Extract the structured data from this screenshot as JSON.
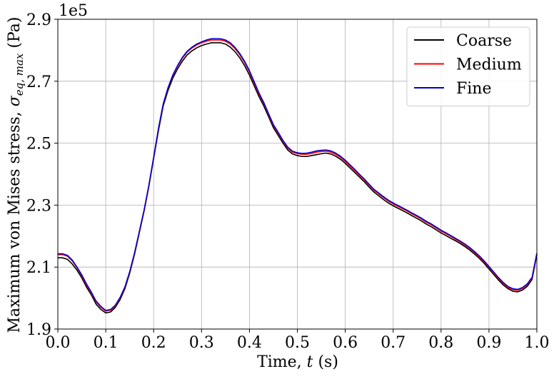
{
  "chart_data": {
    "type": "line",
    "title": "",
    "xlabel_prefix": "Time, ",
    "xlabel_var": "t",
    "xlabel_suffix": " (s)",
    "ylabel_prefix": "Maximum von Mises stress, ",
    "ylabel_sigma": "σ",
    "ylabel_sub": "eq, max",
    "ylabel_suffix": " (Pa)",
    "y_offset_label": "1e5",
    "xlim": [
      0.0,
      1.0
    ],
    "ylim": [
      1.9,
      2.9
    ],
    "y_scale_factor": 100000,
    "xticks": [
      0.0,
      0.1,
      0.2,
      0.3,
      0.4,
      0.5,
      0.6,
      0.7,
      0.8,
      0.9,
      1.0
    ],
    "xtick_labels": [
      "0.0",
      "0.1",
      "0.2",
      "0.3",
      "0.4",
      "0.5",
      "0.6",
      "0.7",
      "0.8",
      "0.9",
      "1.0"
    ],
    "yticks": [
      1.9,
      2.1,
      2.3,
      2.5,
      2.7,
      2.9
    ],
    "ytick_labels": [
      "1.9",
      "2.1",
      "2.3",
      "2.5",
      "2.7",
      "2.9"
    ],
    "grid": true,
    "legend_position": "top-right",
    "x": [
      0.0,
      0.01,
      0.02,
      0.03,
      0.04,
      0.05,
      0.06,
      0.07,
      0.08,
      0.09,
      0.1,
      0.11,
      0.12,
      0.13,
      0.14,
      0.15,
      0.16,
      0.17,
      0.18,
      0.19,
      0.2,
      0.21,
      0.22,
      0.23,
      0.24,
      0.25,
      0.26,
      0.27,
      0.28,
      0.29,
      0.3,
      0.31,
      0.32,
      0.33,
      0.34,
      0.35,
      0.36,
      0.37,
      0.38,
      0.39,
      0.4,
      0.41,
      0.42,
      0.43,
      0.44,
      0.45,
      0.46,
      0.47,
      0.48,
      0.49,
      0.5,
      0.51,
      0.52,
      0.53,
      0.54,
      0.55,
      0.56,
      0.57,
      0.58,
      0.59,
      0.6,
      0.61,
      0.62,
      0.63,
      0.64,
      0.65,
      0.66,
      0.67,
      0.68,
      0.69,
      0.7,
      0.71,
      0.72,
      0.73,
      0.74,
      0.75,
      0.76,
      0.77,
      0.78,
      0.79,
      0.8,
      0.81,
      0.82,
      0.83,
      0.84,
      0.85,
      0.86,
      0.87,
      0.88,
      0.89,
      0.9,
      0.91,
      0.92,
      0.93,
      0.94,
      0.95,
      0.96,
      0.97,
      0.98,
      0.99,
      1.0
    ],
    "series": [
      {
        "name": "Coarse",
        "color": "#000000",
        "values": [
          2.13,
          2.13,
          2.125,
          2.11,
          2.09,
          2.065,
          2.035,
          2.01,
          1.98,
          1.963,
          1.952,
          1.955,
          1.97,
          1.995,
          2.03,
          2.08,
          2.14,
          2.21,
          2.28,
          2.36,
          2.45,
          2.54,
          2.62,
          2.67,
          2.71,
          2.74,
          2.765,
          2.785,
          2.798,
          2.808,
          2.815,
          2.82,
          2.824,
          2.824,
          2.824,
          2.82,
          2.81,
          2.795,
          2.775,
          2.75,
          2.72,
          2.685,
          2.65,
          2.62,
          2.585,
          2.55,
          2.525,
          2.5,
          2.478,
          2.465,
          2.46,
          2.457,
          2.457,
          2.46,
          2.463,
          2.466,
          2.468,
          2.465,
          2.458,
          2.448,
          2.435,
          2.42,
          2.405,
          2.39,
          2.375,
          2.358,
          2.342,
          2.33,
          2.318,
          2.307,
          2.298,
          2.29,
          2.282,
          2.274,
          2.265,
          2.257,
          2.248,
          2.238,
          2.23,
          2.22,
          2.21,
          2.202,
          2.193,
          2.185,
          2.176,
          2.166,
          2.155,
          2.142,
          2.128,
          2.112,
          2.094,
          2.076,
          2.058,
          2.042,
          2.03,
          2.022,
          2.02,
          2.026,
          2.038,
          2.06,
          2.14
        ]
      },
      {
        "name": "Medium",
        "color": "#ff0000",
        "values": [
          2.14,
          2.14,
          2.135,
          2.12,
          2.098,
          2.072,
          2.042,
          2.016,
          1.987,
          1.97,
          1.958,
          1.961,
          1.975,
          2.0,
          2.034,
          2.083,
          2.143,
          2.212,
          2.282,
          2.362,
          2.452,
          2.545,
          2.625,
          2.677,
          2.718,
          2.749,
          2.774,
          2.794,
          2.807,
          2.817,
          2.824,
          2.829,
          2.833,
          2.833,
          2.833,
          2.829,
          2.82,
          2.805,
          2.785,
          2.76,
          2.73,
          2.694,
          2.658,
          2.628,
          2.592,
          2.557,
          2.532,
          2.506,
          2.484,
          2.471,
          2.466,
          2.464,
          2.464,
          2.467,
          2.471,
          2.473,
          2.474,
          2.471,
          2.464,
          2.454,
          2.441,
          2.426,
          2.411,
          2.396,
          2.381,
          2.364,
          2.348,
          2.336,
          2.324,
          2.313,
          2.304,
          2.296,
          2.288,
          2.28,
          2.271,
          2.263,
          2.254,
          2.244,
          2.236,
          2.226,
          2.216,
          2.208,
          2.199,
          2.19,
          2.181,
          2.171,
          2.16,
          2.147,
          2.133,
          2.117,
          2.099,
          2.081,
          2.063,
          2.047,
          2.034,
          2.027,
          2.025,
          2.031,
          2.043,
          2.064,
          2.143
        ]
      },
      {
        "name": "Fine",
        "color": "#0000cc",
        "values": [
          2.143,
          2.143,
          2.138,
          2.123,
          2.1,
          2.075,
          2.045,
          2.019,
          1.99,
          1.973,
          1.96,
          1.963,
          1.977,
          2.002,
          2.036,
          2.085,
          2.145,
          2.214,
          2.284,
          2.364,
          2.454,
          2.547,
          2.627,
          2.679,
          2.72,
          2.751,
          2.777,
          2.797,
          2.81,
          2.82,
          2.827,
          2.833,
          2.837,
          2.837,
          2.837,
          2.833,
          2.824,
          2.809,
          2.789,
          2.764,
          2.734,
          2.698,
          2.662,
          2.631,
          2.595,
          2.56,
          2.535,
          2.509,
          2.487,
          2.474,
          2.469,
          2.467,
          2.468,
          2.471,
          2.475,
          2.477,
          2.478,
          2.475,
          2.468,
          2.458,
          2.445,
          2.43,
          2.415,
          2.399,
          2.384,
          2.367,
          2.351,
          2.339,
          2.327,
          2.316,
          2.307,
          2.299,
          2.291,
          2.283,
          2.274,
          2.266,
          2.257,
          2.247,
          2.239,
          2.229,
          2.219,
          2.211,
          2.202,
          2.193,
          2.184,
          2.174,
          2.163,
          2.15,
          2.136,
          2.12,
          2.102,
          2.084,
          2.066,
          2.05,
          2.037,
          2.03,
          2.028,
          2.034,
          2.046,
          2.067,
          2.145
        ]
      }
    ]
  }
}
